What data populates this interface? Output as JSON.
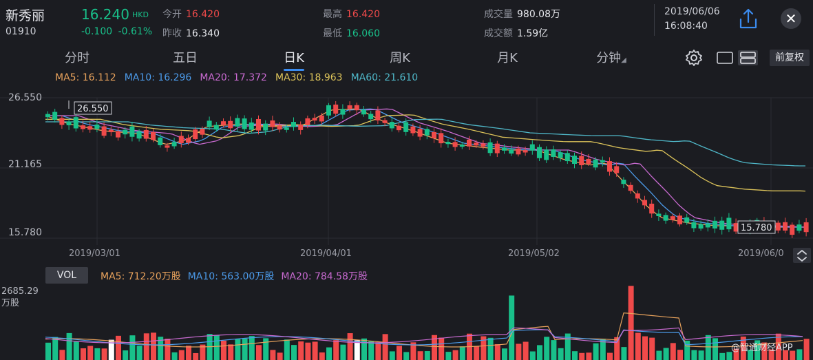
{
  "stock": {
    "name": "新秀丽",
    "code": "01910",
    "price": "16.240",
    "currency": "HKD",
    "change": "-0.100",
    "change_pct": "-0.61%"
  },
  "stats": {
    "open_label": "今开",
    "open": "16.420",
    "prev_close_label": "昨收",
    "prev_close": "16.340",
    "high_label": "最高",
    "high": "16.420",
    "low_label": "最低",
    "low": "16.060",
    "volume_label": "成交量",
    "volume": "980.08万",
    "turnover_label": "成交额",
    "turnover": "1.59亿"
  },
  "datetime": {
    "date": "2019/06/06",
    "time": "16:08:40"
  },
  "tabs": [
    {
      "label": "分时"
    },
    {
      "label": "五日"
    },
    {
      "label": "日K"
    },
    {
      "label": "周K"
    },
    {
      "label": "月K"
    },
    {
      "label": "分钟"
    }
  ],
  "active_tab": "日K",
  "restore_label": "前复权",
  "ma": [
    {
      "label": "MA5: 16.112",
      "color": "#e8a25c"
    },
    {
      "label": "MA10: 16.296",
      "color": "#4c9bea"
    },
    {
      "label": "MA20: 17.372",
      "color": "#c86ad0"
    },
    {
      "label": "MA30: 18.963",
      "color": "#dcc35a"
    },
    {
      "label": "MA60: 21.610",
      "color": "#4fb7c8"
    }
  ],
  "price_axis": [
    "26.550",
    "21.165",
    "15.780"
  ],
  "date_axis": [
    "2019/03/01",
    "2019/04/01",
    "2019/05/02",
    "2019/06/0"
  ],
  "annotations": {
    "max": "26.550",
    "min": "15.780"
  },
  "volume": {
    "button": "VOL",
    "ma": [
      {
        "label": "MA5: 712.20万股",
        "color": "#e8a25c"
      },
      {
        "label": "MA10: 563.00万股",
        "color": "#4c9bea"
      },
      {
        "label": "MA20: 784.58万股",
        "color": "#c86ad0"
      }
    ],
    "max_label": "2685.29",
    "unit": "万股"
  },
  "watermark": "@智通财经APP",
  "colors": {
    "up": "#f04a4a",
    "down": "#19c08a",
    "flat": "#ffffff",
    "accent": "#3b8cf0"
  },
  "icons": {
    "share": "share-icon",
    "close": "close-icon",
    "settings": "gear-icon",
    "layout": "layout-icon",
    "expand": "expand-icon"
  }
}
